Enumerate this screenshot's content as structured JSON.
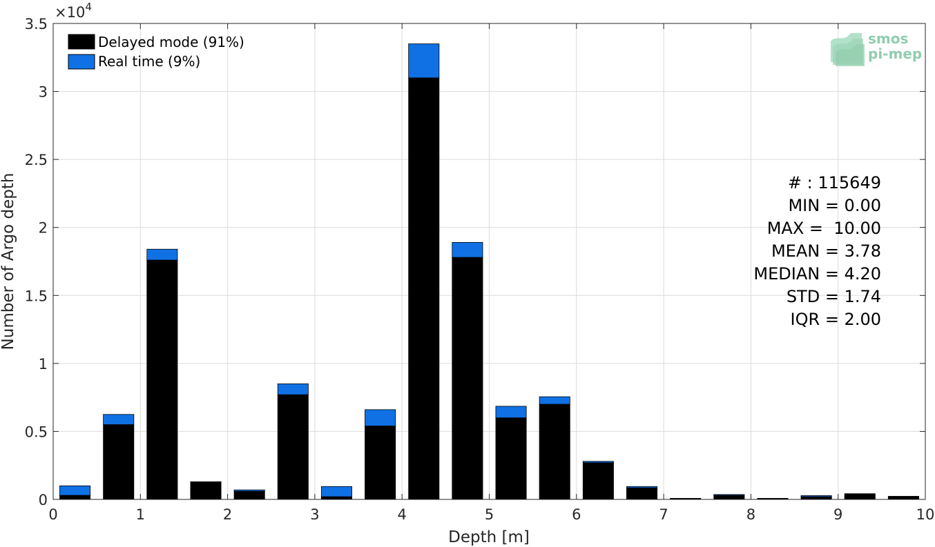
{
  "chart_data": {
    "type": "bar",
    "stacked": true,
    "xlabel": "Depth [m]",
    "ylabel": "Number of Argo depth",
    "xlim": [
      0,
      10
    ],
    "ylim": [
      0,
      35000
    ],
    "y_exponent_label": "×10",
    "y_exponent": "4",
    "x_ticks": [
      0,
      1,
      2,
      3,
      4,
      5,
      6,
      7,
      8,
      9,
      10
    ],
    "x_tick_labels": [
      "0",
      "1",
      "2",
      "3",
      "4",
      "5",
      "6",
      "7",
      "8",
      "9",
      "10"
    ],
    "y_ticks": [
      0,
      5000,
      10000,
      15000,
      20000,
      25000,
      30000,
      35000
    ],
    "y_tick_labels": [
      "0",
      "0.5",
      "1",
      "1.5",
      "2",
      "2.5",
      "3",
      "3.5"
    ],
    "grid": true,
    "legend_position": "top-left",
    "bin_width": 0.5,
    "bar_width": 0.35,
    "x": [
      0.25,
      0.75,
      1.25,
      1.75,
      2.25,
      2.75,
      3.25,
      3.75,
      4.25,
      4.75,
      5.25,
      5.75,
      6.25,
      6.75,
      7.25,
      7.75,
      8.25,
      8.75,
      9.25,
      9.75
    ],
    "series": [
      {
        "name": "Delayed mode (91%)",
        "color": "#000000",
        "values": [
          300,
          5500,
          17600,
          1300,
          600,
          7700,
          200,
          5400,
          31000,
          17800,
          6000,
          7000,
          2700,
          850,
          80,
          300,
          80,
          200,
          420,
          230
        ]
      },
      {
        "name": "Real time (9%)",
        "color": "#1071e5",
        "values": [
          700,
          750,
          800,
          0,
          100,
          800,
          750,
          1200,
          2500,
          1100,
          850,
          550,
          100,
          100,
          0,
          60,
          0,
          80,
          0,
          0
        ]
      }
    ],
    "annotations": [
      "# : 115649",
      "MIN = 0.00",
      "MAX =  10.00",
      "MEAN = 3.78",
      "MEDIAN = 4.20",
      "STD = 1.74",
      "IQR = 2.00"
    ]
  },
  "logo": {
    "line1": "smos",
    "line2": "pi-mep",
    "color": "#7fc4a0"
  }
}
